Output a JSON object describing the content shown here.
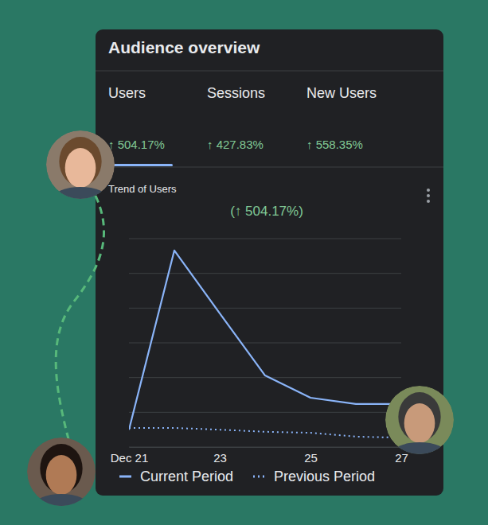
{
  "header": {
    "title": "Audience overview"
  },
  "tabs": [
    {
      "label": "Users",
      "change": "↑ 504.17%"
    },
    {
      "label": "Sessions",
      "change": "↑ 427.83%"
    },
    {
      "label": "New Users",
      "change": "↑ 558.35%"
    }
  ],
  "chart_data": {
    "type": "line",
    "title": "Trend of Users",
    "subtitle": "(↑ 504.17%)",
    "categories": [
      "Dec 21",
      null,
      "23",
      null,
      "25",
      null,
      "27"
    ],
    "series": [
      {
        "name": "Current Period",
        "color": "#8ab4f8",
        "line_style": "solid",
        "values": [
          0.5,
          5.66,
          3.85,
          2.06,
          1.42,
          1.24,
          1.24
        ]
      },
      {
        "name": "Previous Period",
        "color": "#8ab4f8",
        "line_style": "dotted",
        "values": [
          0.55,
          0.55,
          0.5,
          0.44,
          0.41,
          0.3,
          0.27
        ]
      }
    ],
    "ylim": [
      0,
      6
    ],
    "yticks": [
      0,
      1,
      2,
      3,
      4,
      5,
      6
    ],
    "grid": true,
    "tick_labels": "x",
    "legend": "bottom"
  }
}
